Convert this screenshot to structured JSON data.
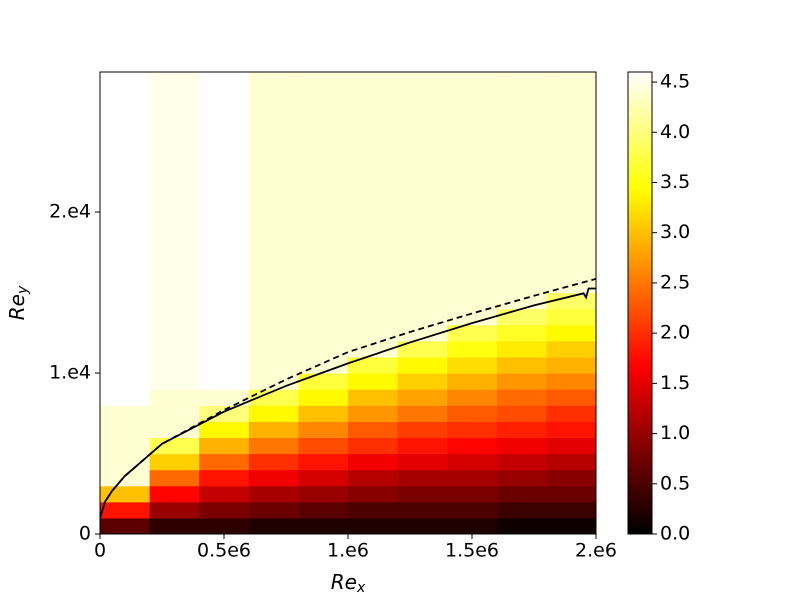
{
  "chart_data": {
    "type": "contour",
    "xlabel": [
      "Re",
      "x"
    ],
    "ylabel": [
      "Re",
      "y"
    ],
    "xlim": [
      0,
      2000000
    ],
    "ylim": [
      0,
      28700
    ],
    "xticks": [
      0,
      {
        "value": 500000,
        "label": "0.5e6"
      },
      {
        "value": 1000000,
        "label": "1.e6"
      },
      {
        "value": 1500000,
        "label": "1.5e6"
      },
      {
        "value": 2000000,
        "label": "2.e6"
      }
    ],
    "yticks": [
      0,
      {
        "value": 10000,
        "label": "1.e4"
      },
      {
        "value": 20000,
        "label": "2.e4"
      }
    ],
    "colormap": "hot",
    "clim": [
      0,
      4.6
    ],
    "cticks": [
      {
        "value": 0,
        "label": "0.0"
      },
      0.5,
      {
        "value": 1,
        "label": "1.0"
      },
      1.5,
      {
        "value": 2,
        "label": "2.0"
      },
      2.5,
      {
        "value": 3,
        "label": "3.0"
      },
      3.5,
      {
        "value": 4,
        "label": "4.0"
      },
      4.5
    ],
    "x_edges": [
      0,
      200000,
      400000,
      600000,
      800000,
      1000000,
      1200000,
      1400000,
      1600000,
      1800000,
      2000000
    ],
    "y_edges": [
      0,
      1000,
      2000,
      3000,
      4000,
      5000,
      6000,
      7000,
      8000,
      9000,
      10000,
      11000,
      12000,
      13000,
      14000,
      15000,
      16000,
      20000,
      24000,
      28700
    ],
    "z": [
      [
        0.6,
        0.3,
        0.3,
        0.2,
        0.2,
        0.2,
        0.2,
        0.2,
        0.1,
        0.1
      ],
      [
        1.8,
        1.0,
        0.8,
        0.7,
        0.6,
        0.5,
        0.5,
        0.5,
        0.4,
        0.4
      ],
      [
        3.0,
        1.7,
        1.3,
        1.1,
        1.0,
        0.9,
        0.8,
        0.8,
        0.7,
        0.7
      ],
      [
        4.4,
        2.4,
        1.8,
        1.6,
        1.4,
        1.2,
        1.1,
        1.1,
        1.0,
        0.9
      ],
      [
        4.4,
        3.1,
        2.4,
        2.0,
        1.8,
        1.6,
        1.5,
        1.4,
        1.3,
        1.2
      ],
      [
        4.4,
        3.8,
        2.9,
        2.5,
        2.2,
        2.0,
        1.8,
        1.7,
        1.6,
        1.5
      ],
      [
        4.4,
        4.4,
        3.4,
        2.9,
        2.6,
        2.3,
        2.1,
        2.0,
        1.9,
        1.8
      ],
      [
        4.4,
        4.4,
        4.0,
        3.4,
        3.0,
        2.7,
        2.5,
        2.3,
        2.2,
        2.0
      ],
      [
        4.6,
        4.4,
        4.4,
        3.8,
        3.4,
        3.0,
        2.8,
        2.6,
        2.4,
        2.3
      ],
      [
        4.6,
        4.5,
        4.6,
        4.4,
        3.7,
        3.4,
        3.1,
        2.9,
        2.7,
        2.6
      ],
      [
        4.6,
        4.5,
        4.6,
        4.4,
        4.4,
        3.7,
        3.4,
        3.2,
        3.0,
        2.9
      ],
      [
        4.6,
        4.5,
        4.6,
        4.4,
        4.4,
        4.4,
        3.8,
        3.5,
        3.3,
        3.1
      ],
      [
        4.6,
        4.5,
        4.6,
        4.4,
        4.4,
        4.4,
        4.4,
        3.8,
        3.6,
        3.4
      ],
      [
        4.6,
        4.5,
        4.6,
        4.4,
        4.4,
        4.4,
        4.4,
        4.4,
        3.9,
        3.7
      ],
      [
        4.6,
        4.5,
        4.6,
        4.4,
        4.4,
        4.4,
        4.4,
        4.4,
        4.4,
        3.9
      ],
      [
        4.6,
        4.5,
        4.6,
        4.4,
        4.4,
        4.4,
        4.4,
        4.4,
        4.4,
        4.4
      ],
      [
        4.6,
        4.5,
        4.6,
        4.4,
        4.4,
        4.4,
        4.4,
        4.4,
        4.4,
        4.4
      ],
      [
        4.6,
        4.5,
        4.6,
        4.4,
        4.4,
        4.4,
        4.4,
        4.4,
        4.4,
        4.4
      ],
      [
        4.6,
        4.5,
        4.6,
        4.4,
        4.4,
        4.4,
        4.4,
        4.4,
        4.4,
        4.4
      ]
    ],
    "lines": [
      {
        "style": "solid",
        "color": "#000000",
        "x": [
          0,
          20000,
          50000,
          100000,
          250000,
          500000,
          750000,
          1000000,
          1250000,
          1500000,
          1750000,
          1950000,
          1960000,
          1970000,
          2000000
        ],
        "values": [
          1000,
          2000,
          2700,
          3600,
          5600,
          7600,
          9200,
          10600,
          11900,
          13100,
          14200,
          14950,
          14700,
          15250,
          15250
        ]
      },
      {
        "style": "dashed",
        "color": "#000000",
        "x": [
          0,
          20000,
          50000,
          100000,
          250000,
          500000,
          750000,
          1000000,
          1250000,
          1500000,
          1750000,
          2000000
        ],
        "values": [
          1000,
          2000,
          2700,
          3600,
          5600,
          7700,
          9600,
          11300,
          12550,
          13700,
          14800,
          15850
        ]
      }
    ]
  }
}
